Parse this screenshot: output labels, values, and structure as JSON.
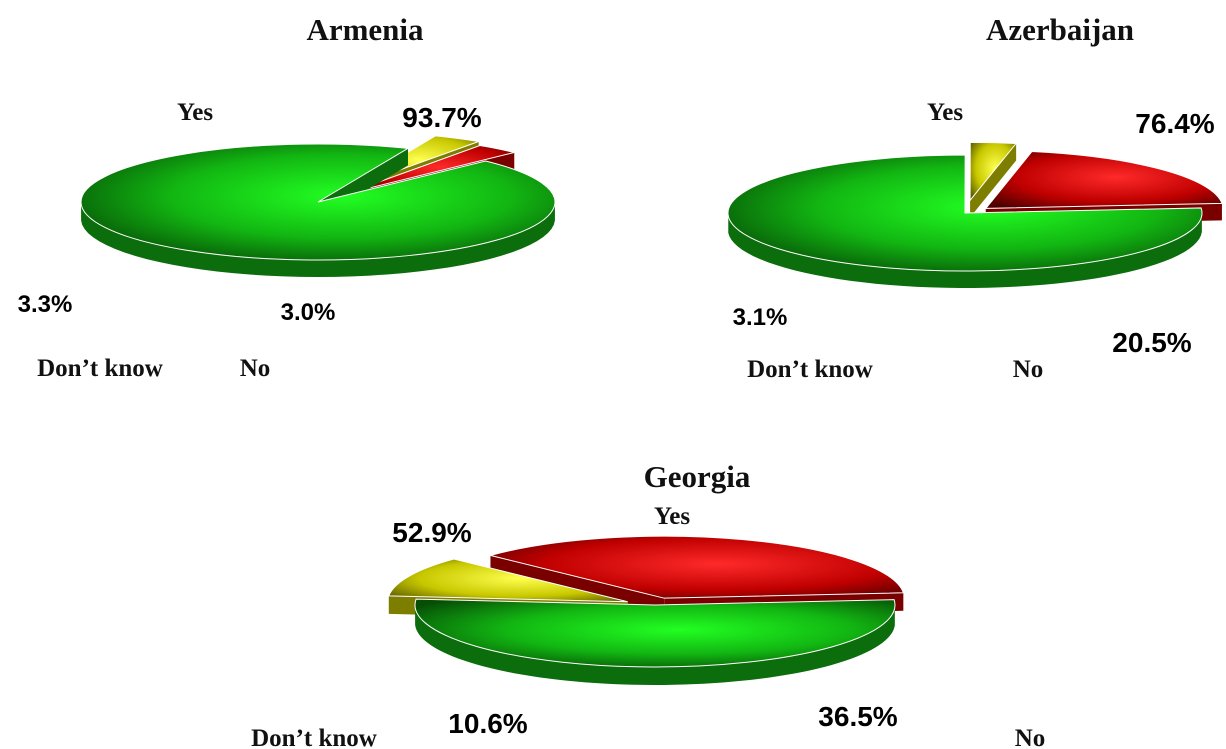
{
  "chart_data": [
    {
      "type": "pie",
      "title": "Armenia",
      "categories": [
        "Yes",
        "Don’t know",
        "No"
      ],
      "values": [
        93.7,
        3.3,
        3.0
      ],
      "value_labels": [
        "93.7%",
        "3.3%",
        "3.0%"
      ]
    },
    {
      "type": "pie",
      "title": "Azerbaijan",
      "categories": [
        "Yes",
        "Don’t know",
        "No"
      ],
      "values": [
        76.4,
        3.1,
        20.5
      ],
      "value_labels": [
        "76.4%",
        "3.1%",
        "20.5%"
      ]
    },
    {
      "type": "pie",
      "title": "Georgia",
      "categories": [
        "Yes",
        "Don’t know",
        "No"
      ],
      "values": [
        52.9,
        10.6,
        36.5
      ],
      "value_labels": [
        "52.9%",
        "10.6%",
        "36.5%"
      ]
    }
  ],
  "colors": {
    "Yes": "#1fc21f",
    "Don’t know": "#e4e400",
    "No": "#dd0000"
  },
  "style": {
    "pie": "3D exploded",
    "legend": "none (labels beside slices)"
  }
}
